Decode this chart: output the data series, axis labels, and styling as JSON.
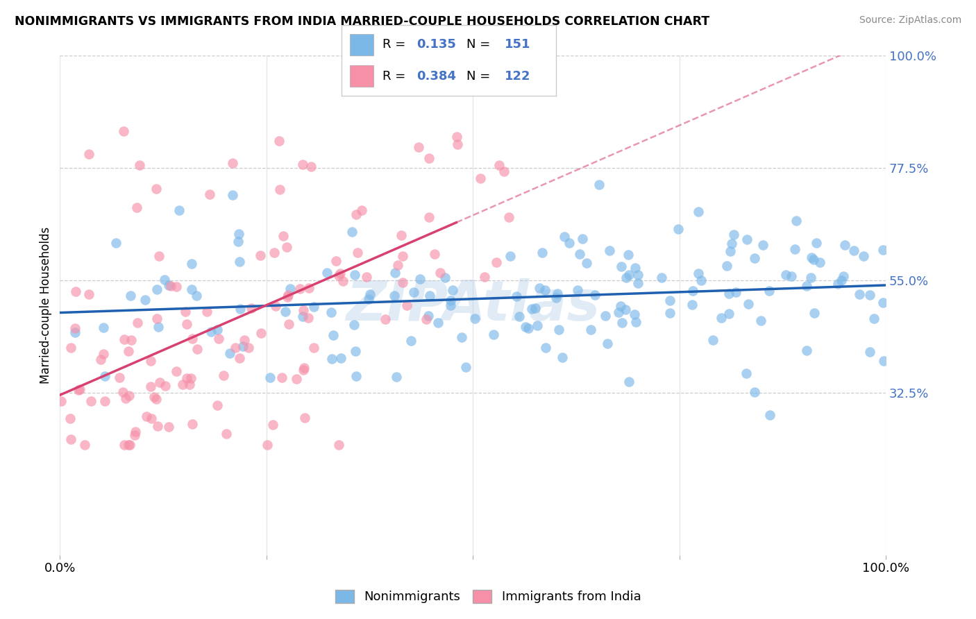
{
  "title": "NONIMMIGRANTS VS IMMIGRANTS FROM INDIA MARRIED-COUPLE HOUSEHOLDS CORRELATION CHART",
  "source": "Source: ZipAtlas.com",
  "ylabel": "Married-couple Households",
  "blue_label": "Nonimmigrants",
  "pink_label": "Immigrants from India",
  "blue_R": 0.135,
  "blue_N": 151,
  "pink_R": 0.384,
  "pink_N": 122,
  "blue_color": "#7bb8e8",
  "pink_color": "#f590a8",
  "blue_line_color": "#2060b0",
  "pink_line_color": "#d84070",
  "xmin": 0.0,
  "xmax": 1.0,
  "ymin": 0.0,
  "ymax": 1.0,
  "yticks": [
    0.325,
    0.55,
    0.775,
    1.0
  ],
  "ytick_labels": [
    "32.5%",
    "55.0%",
    "77.5%",
    "100.0%"
  ],
  "xticks": [
    0.0,
    0.25,
    0.5,
    0.75,
    1.0
  ],
  "xtick_labels": [
    "0.0%",
    "",
    "",
    "",
    "100.0%"
  ],
  "watermark": "ZIPAtlas",
  "blue_intercept": 0.485,
  "blue_slope": 0.055,
  "pink_intercept": 0.32,
  "pink_slope": 0.72,
  "pink_line_xmax": 0.48
}
